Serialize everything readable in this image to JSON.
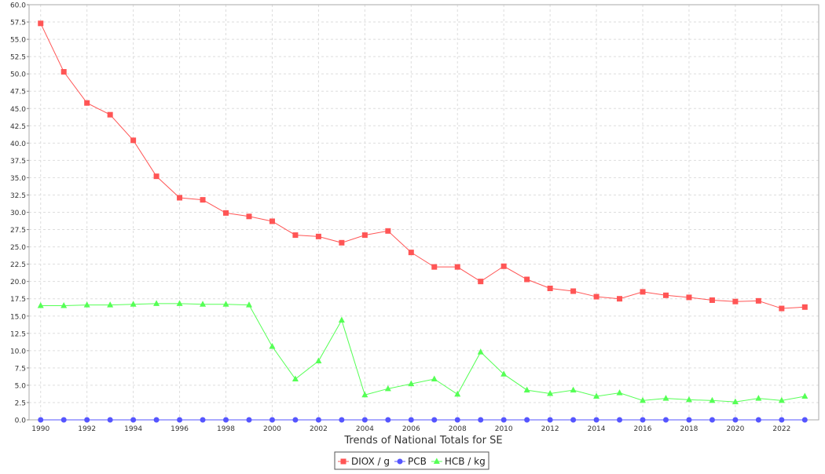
{
  "chart_data": {
    "type": "line",
    "title": "",
    "xlabel": "Trends of National Totals for SE",
    "ylabel": "",
    "xlim": [
      1989.5,
      2023.6
    ],
    "ylim": [
      0,
      60
    ],
    "yticks": [
      "0.0",
      "2.5",
      "5.0",
      "7.5",
      "10.0",
      "12.5",
      "15.0",
      "17.5",
      "20.0",
      "22.5",
      "25.0",
      "27.5",
      "30.0",
      "32.5",
      "35.0",
      "37.5",
      "40.0",
      "42.5",
      "45.0",
      "47.5",
      "50.0",
      "52.5",
      "55.0",
      "57.5",
      "60.0"
    ],
    "xticks": [
      "1990",
      "1992",
      "1994",
      "1996",
      "1998",
      "2000",
      "2002",
      "2004",
      "2006",
      "2008",
      "2010",
      "2012",
      "2014",
      "2016",
      "2018",
      "2020",
      "2022"
    ],
    "grid": true,
    "legend_position": "bottom-center",
    "x": [
      1990,
      1991,
      1992,
      1993,
      1994,
      1995,
      1996,
      1997,
      1998,
      1999,
      2000,
      2001,
      2002,
      2003,
      2004,
      2005,
      2006,
      2007,
      2008,
      2009,
      2010,
      2011,
      2012,
      2013,
      2014,
      2015,
      2016,
      2017,
      2018,
      2019,
      2020,
      2021,
      2022,
      2023
    ],
    "series": [
      {
        "name": "DIOX / g",
        "color": "#ff5555",
        "marker": "square",
        "values": [
          57.3,
          50.3,
          45.8,
          44.1,
          40.4,
          35.2,
          32.1,
          31.8,
          29.9,
          29.4,
          28.7,
          26.7,
          26.5,
          25.6,
          26.7,
          27.3,
          24.2,
          22.1,
          22.1,
          20.0,
          22.2,
          20.3,
          19.0,
          18.6,
          17.8,
          17.5,
          18.5,
          18.0,
          17.7,
          17.3,
          17.1,
          17.2,
          16.1,
          16.3
        ]
      },
      {
        "name": "PCB",
        "color": "#5555ff",
        "marker": "circle",
        "values": [
          0,
          0,
          0,
          0,
          0,
          0,
          0,
          0,
          0,
          0,
          0,
          0,
          0,
          0,
          0,
          0,
          0,
          0,
          0,
          0,
          0,
          0,
          0,
          0,
          0,
          0,
          0,
          0,
          0,
          0,
          0,
          0,
          0,
          0
        ]
      },
      {
        "name": "HCB / kg",
        "color": "#55ff55",
        "marker": "triangle",
        "values": [
          16.5,
          16.5,
          16.6,
          16.6,
          16.7,
          16.8,
          16.8,
          16.7,
          16.7,
          16.6,
          10.6,
          5.9,
          8.5,
          14.4,
          3.6,
          4.5,
          5.2,
          5.9,
          3.7,
          9.8,
          6.6,
          4.3,
          3.8,
          4.3,
          3.4,
          3.9,
          2.8,
          3.1,
          2.9,
          2.8,
          2.6,
          3.1,
          2.8,
          3.4
        ]
      }
    ]
  }
}
